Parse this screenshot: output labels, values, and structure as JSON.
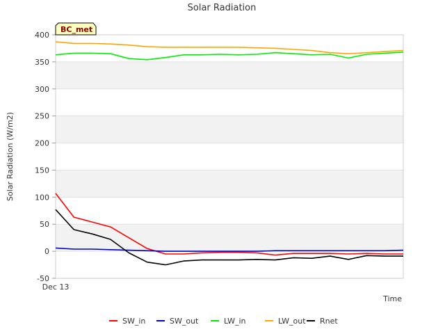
{
  "chart_data": {
    "type": "line",
    "title": "Solar Radiation",
    "xlabel": "Time",
    "ylabel": "Solar Radiation (W/m2)",
    "ylim": [
      -50,
      400
    ],
    "yticks": [
      -50,
      0,
      50,
      100,
      150,
      200,
      250,
      300,
      350,
      400
    ],
    "x_tick_label": "Dec 13",
    "station_badge": "BC_met",
    "legend_position": "bottom-center",
    "grid": true,
    "x": [
      0,
      1,
      2,
      3,
      4,
      5,
      6,
      7,
      8,
      9,
      10,
      11,
      12,
      13,
      14,
      15,
      16,
      17,
      18,
      19
    ],
    "series": [
      {
        "name": "SW_in",
        "color": "#ff0000",
        "values": [
          107,
          63,
          54,
          45,
          25,
          5,
          -5,
          -5,
          -3,
          -2,
          -2,
          -3,
          -7,
          -4,
          -4,
          -4,
          -5,
          -4,
          -5,
          -5
        ]
      },
      {
        "name": "SW_out",
        "color": "#0000cc",
        "values": [
          6,
          4,
          4,
          3,
          2,
          1,
          0,
          0,
          0,
          0,
          0,
          0,
          1,
          1,
          1,
          1,
          1,
          1,
          1,
          2
        ]
      },
      {
        "name": "LW_in",
        "color": "#00ee00",
        "values": [
          363,
          366,
          366,
          365,
          356,
          354,
          358,
          363,
          363,
          364,
          363,
          364,
          367,
          365,
          363,
          364,
          357,
          364,
          366,
          368
        ]
      },
      {
        "name": "LW_out",
        "color": "#ffa500",
        "values": [
          387,
          384,
          384,
          383,
          381,
          378,
          377,
          377,
          377,
          377,
          377,
          376,
          375,
          373,
          371,
          367,
          365,
          367,
          369,
          371
        ]
      },
      {
        "name": "Rnet",
        "color": "#000000",
        "values": [
          77,
          40,
          32,
          22,
          -3,
          -20,
          -25,
          -18,
          -16,
          -16,
          -16,
          -15,
          -16,
          -12,
          -13,
          -9,
          -15,
          -8,
          -9,
          -9
        ]
      }
    ]
  }
}
